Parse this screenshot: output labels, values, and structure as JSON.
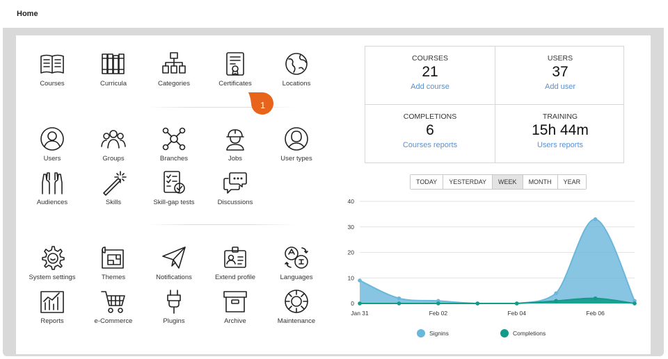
{
  "header": {
    "title": "Home"
  },
  "tiles": [
    {
      "label": "Courses",
      "icon": "book-open-icon"
    },
    {
      "label": "Curricula",
      "icon": "bookshelf-icon"
    },
    {
      "label": "Categories",
      "icon": "category-tree-icon"
    },
    {
      "label": "Certificates",
      "icon": "certificate-icon"
    },
    {
      "label": "Locations",
      "icon": "globe-icon"
    },
    {
      "label": "Users",
      "icon": "user-circle-icon"
    },
    {
      "label": "Groups",
      "icon": "group-icon"
    },
    {
      "label": "Branches",
      "icon": "branches-network-icon"
    },
    {
      "label": "Jobs",
      "icon": "worker-helmet-icon"
    },
    {
      "label": "User types",
      "icon": "user-type-icon"
    },
    {
      "label": "Audiences",
      "icon": "raised-hands-icon"
    },
    {
      "label": "Skills",
      "icon": "magic-wand-icon"
    },
    {
      "label": "Skill-gap tests",
      "icon": "checklist-icon"
    },
    {
      "label": "Discussions",
      "icon": "chat-bubbles-icon"
    },
    {
      "label": "System settings",
      "icon": "gear-icon"
    },
    {
      "label": "Themes",
      "icon": "theme-blueprint-icon"
    },
    {
      "label": "Notifications",
      "icon": "paper-plane-icon"
    },
    {
      "label": "Extend profile",
      "icon": "id-badge-icon"
    },
    {
      "label": "Languages",
      "icon": "translate-icon"
    },
    {
      "label": "Reports",
      "icon": "bar-chart-icon"
    },
    {
      "label": "e-Commerce",
      "icon": "shopping-cart-icon"
    },
    {
      "label": "Plugins",
      "icon": "plug-icon"
    },
    {
      "label": "Archive",
      "icon": "archive-box-icon"
    },
    {
      "label": "Maintenance",
      "icon": "maintenance-wheel-icon"
    }
  ],
  "badge": {
    "text": "1",
    "color": "#e8641b"
  },
  "stats": {
    "courses": {
      "caption": "COURSES",
      "value": "21",
      "link": "Add course"
    },
    "users": {
      "caption": "USERS",
      "value": "37",
      "link": "Add user"
    },
    "completions": {
      "caption": "COMPLETIONS",
      "value": "6",
      "link": "Courses reports"
    },
    "training": {
      "caption": "TRAINING",
      "value": "15h 44m",
      "link": "Users reports"
    }
  },
  "periods": [
    {
      "label": "TODAY",
      "active": false
    },
    {
      "label": "YESTERDAY",
      "active": false
    },
    {
      "label": "WEEK",
      "active": true
    },
    {
      "label": "MONTH",
      "active": false
    },
    {
      "label": "YEAR",
      "active": false
    }
  ],
  "chart_data": {
    "type": "area",
    "x": [
      "Jan 31",
      "Feb 01",
      "Feb 02",
      "Feb 03",
      "Feb 04",
      "Feb 05",
      "Feb 06",
      "Feb 07"
    ],
    "tick_labels": [
      "Jan 31",
      "Feb 02",
      "Feb 04",
      "Feb 06"
    ],
    "yticks": [
      0,
      10,
      20,
      30,
      40
    ],
    "ylim": [
      0,
      40
    ],
    "series": [
      {
        "name": "Signins",
        "values": [
          9,
          2,
          1,
          0,
          0,
          4,
          33,
          1
        ],
        "color": "#6ab7dc"
      },
      {
        "name": "Completions",
        "values": [
          0,
          0,
          0,
          0,
          0,
          1,
          2,
          0
        ],
        "color": "#119b88"
      }
    ],
    "grid": true,
    "legend": "bottom"
  }
}
